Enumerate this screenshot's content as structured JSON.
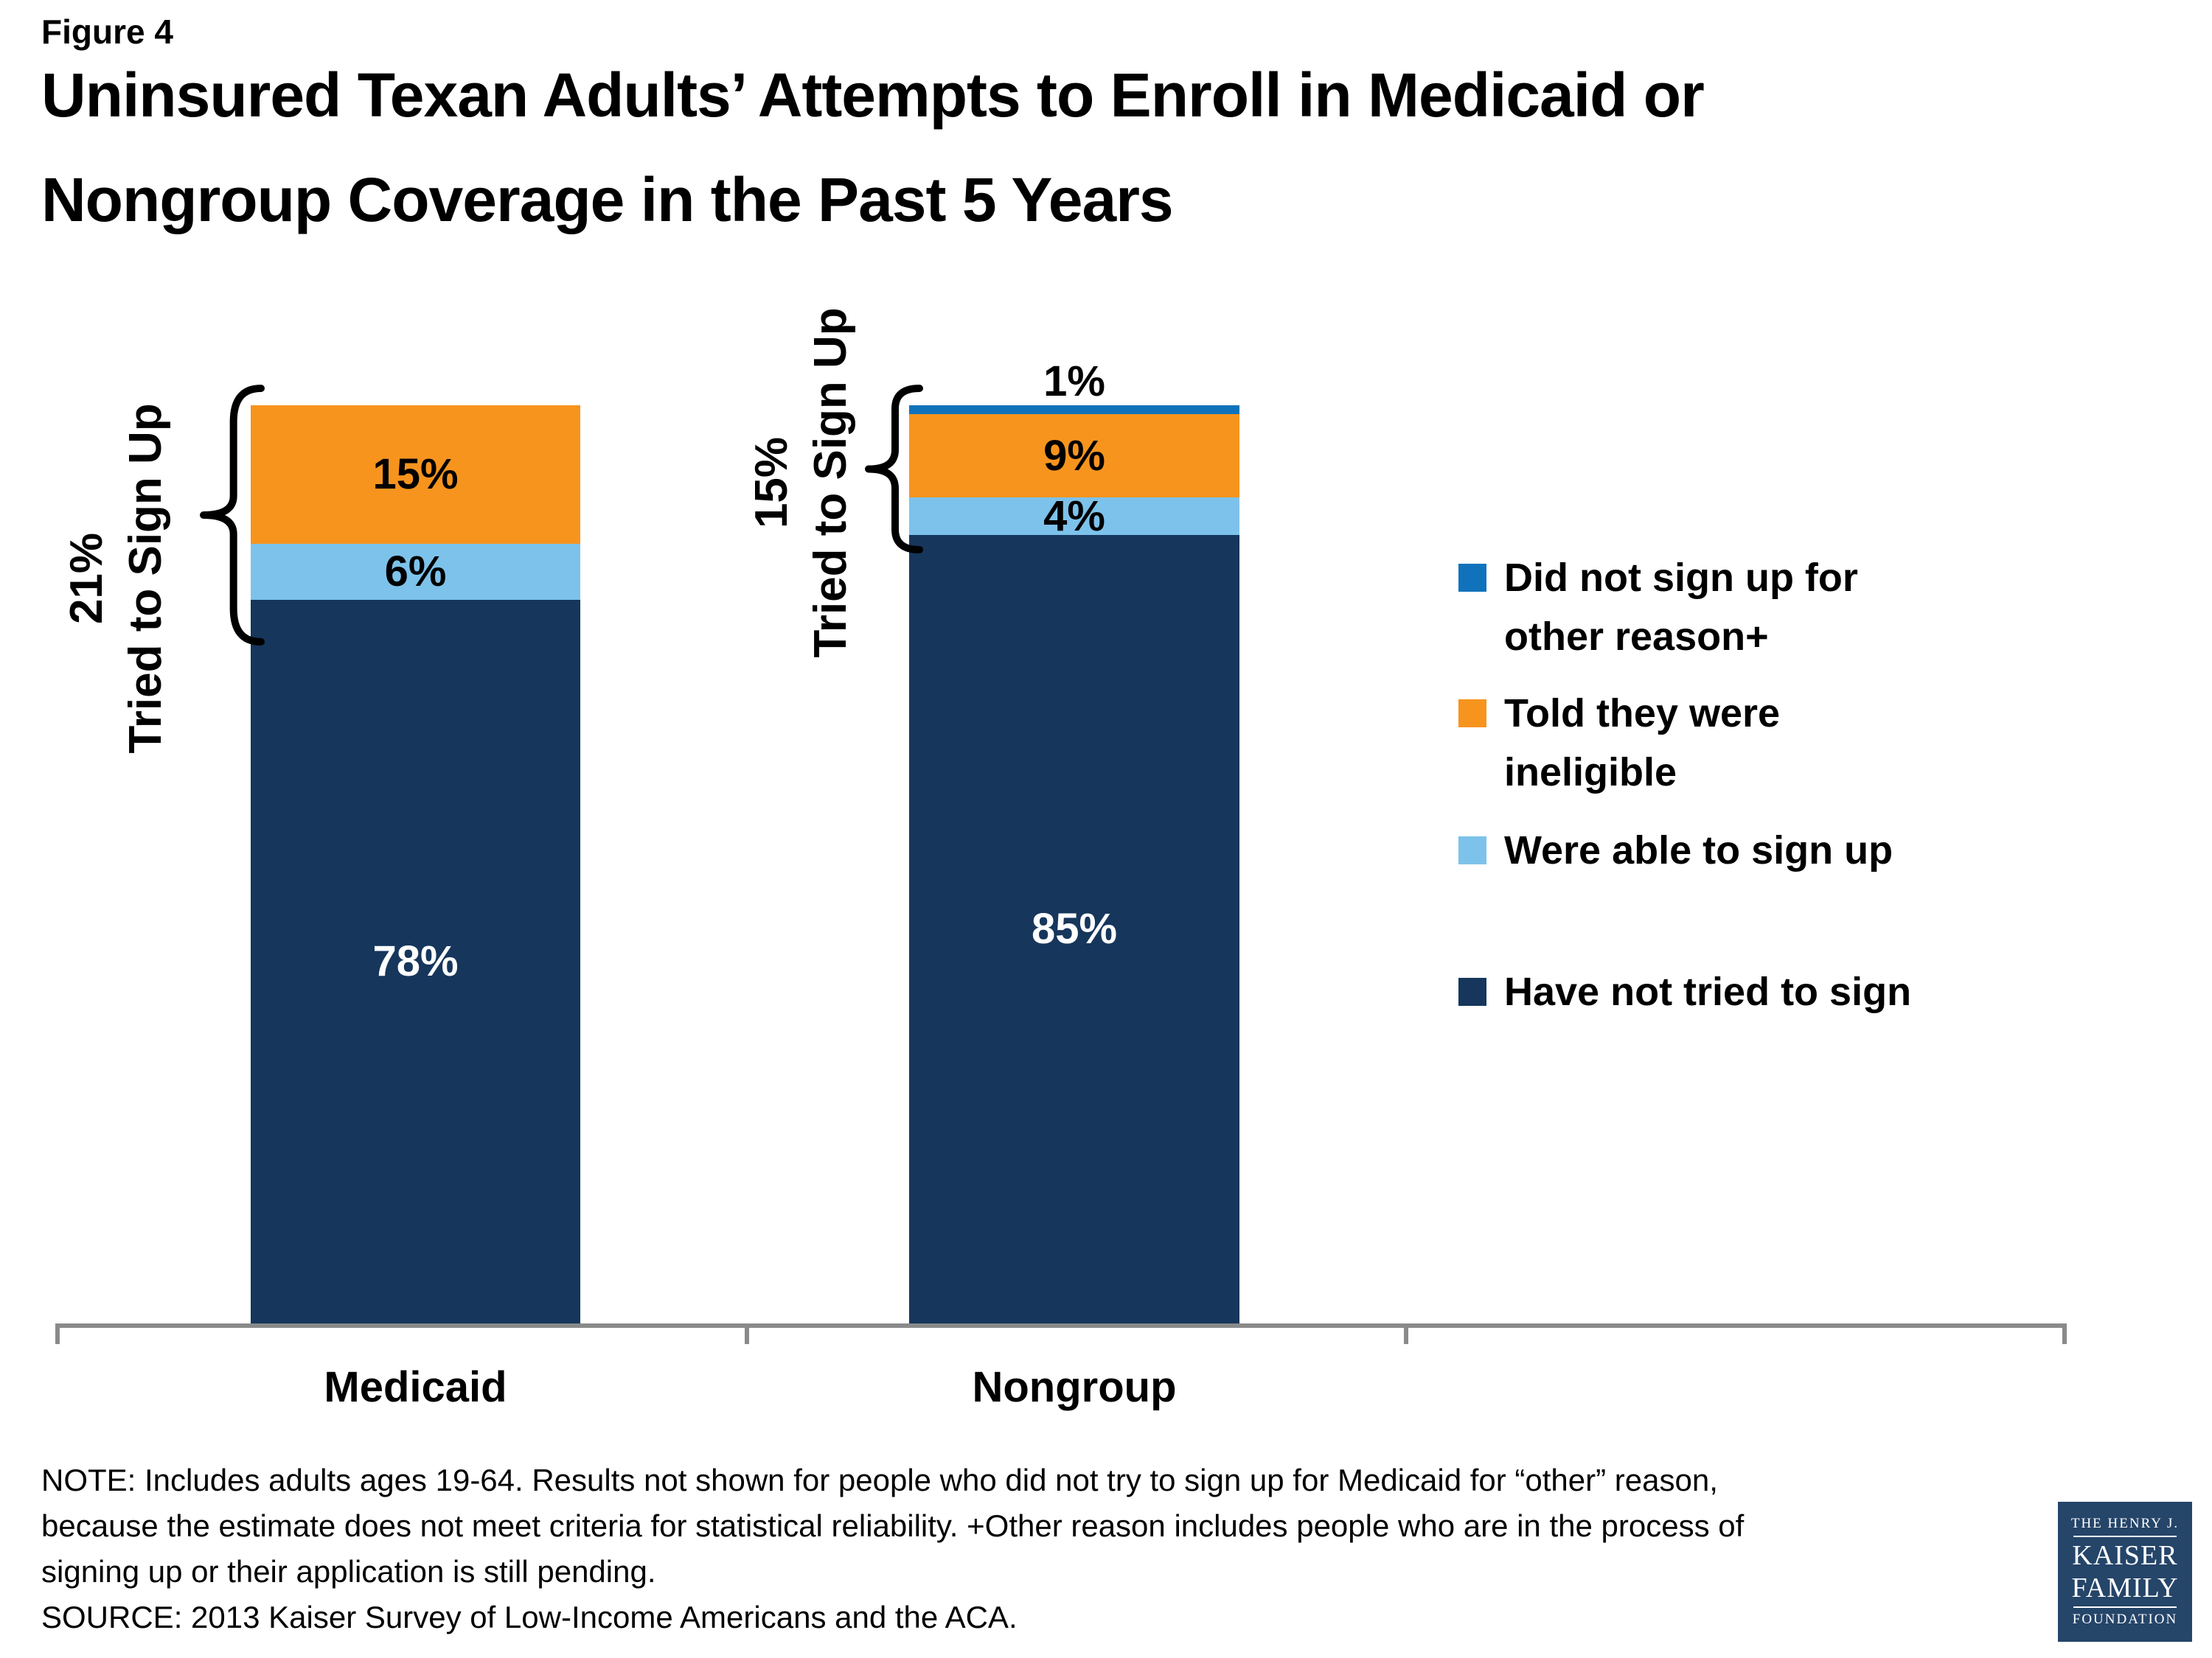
{
  "figure": {
    "label": "Figure 4"
  },
  "title": {
    "line1": "Uninsured Texan Adults’ Attempts to Enroll in Medicaid or",
    "line2": "Nongroup Coverage in the Past 5 Years"
  },
  "colors": {
    "navy": "#16365C",
    "light_blue": "#7DC2EB",
    "orange": "#F7941E",
    "blue": "#1172BC",
    "axis": "#8A8A8A",
    "logo_bg": "#254569",
    "label_dark": "#000000",
    "label_light": "#FFFFFF"
  },
  "chart_data": {
    "type": "bar",
    "stacked": true,
    "unit": "%",
    "title": "Uninsured Texan Adults’ Attempts to Enroll in Medicaid or Nongroup Coverage in the Past 5 Years",
    "xlabel": "",
    "ylabel": "",
    "ylim": [
      0,
      100
    ],
    "grid": false,
    "legend_position": "right",
    "categories": [
      "Medicaid",
      "Nongroup"
    ],
    "series": [
      {
        "name": "Have not tried to sign",
        "color_key": "navy",
        "values": [
          78,
          85
        ],
        "label_color": "#FFFFFF"
      },
      {
        "name": "Were able to sign up",
        "color_key": "light_blue",
        "values": [
          6,
          4
        ]
      },
      {
        "name": "Told they were ineligible",
        "color_key": "orange",
        "values": [
          15,
          9
        ]
      },
      {
        "name": "Did not sign up for other reason+",
        "color_key": "blue",
        "values": [
          null,
          1
        ]
      }
    ],
    "annotations": [
      {
        "bar": "Medicaid",
        "lines": [
          "21%",
          "Tried to Sign Up"
        ]
      },
      {
        "bar": "Nongroup",
        "lines": [
          "15%",
          "Tried to Sign Up"
        ]
      }
    ]
  },
  "legend": {
    "items": [
      {
        "color_key": "blue",
        "lines": [
          "Did not sign up for",
          "other reason+"
        ]
      },
      {
        "color_key": "orange",
        "lines": [
          "Told they were",
          "ineligible"
        ]
      },
      {
        "color_key": "light_blue",
        "lines": [
          "Were able to sign up"
        ]
      },
      {
        "color_key": "navy",
        "lines": [
          "Have not tried to sign"
        ]
      }
    ]
  },
  "note": {
    "lines": [
      "NOTE: Includes adults ages 19-64. Results not shown for people who did not try to sign up for Medicaid for “other” reason,",
      "because the estimate does not meet criteria for statistical reliability. +Other reason includes people who are in the process of",
      "signing up or their application is still pending.",
      "SOURCE: 2013 Kaiser Survey of Low-Income Americans and the ACA."
    ]
  },
  "logo": {
    "line1": "THE HENRY J.",
    "line2": "KAISER",
    "line3": "FAMILY",
    "line4": "FOUNDATION"
  }
}
